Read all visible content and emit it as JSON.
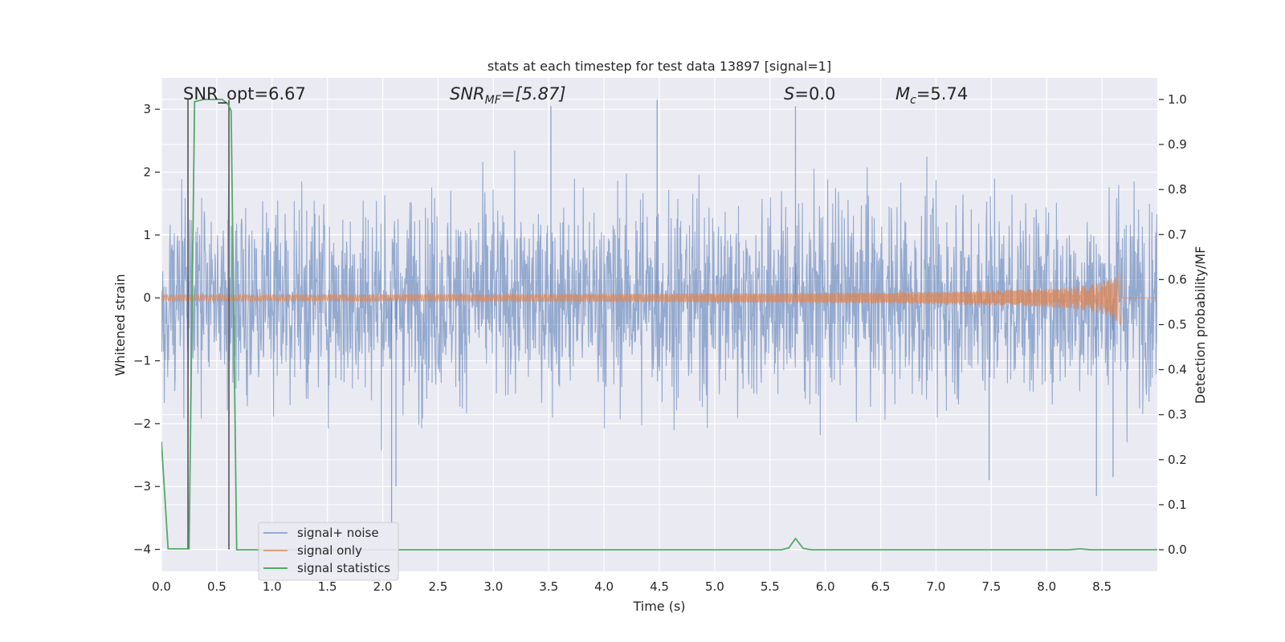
{
  "chart_data": {
    "type": "line",
    "title": "stats at each timestep for test data 13897 [signal=1]",
    "xlabel": "Time (s)",
    "ylabel": "Whitened strain",
    "y2label": "Detection probability/MF",
    "xlim": [
      0.0,
      9.0
    ],
    "ylim": [
      -4.35,
      3.5
    ],
    "y2lim": [
      -0.048,
      1.048
    ],
    "xticks": [
      "0.0",
      "0.5",
      "1.0",
      "1.5",
      "2.0",
      "2.5",
      "3.0",
      "3.5",
      "4.0",
      "4.5",
      "5.0",
      "5.5",
      "6.0",
      "6.5",
      "7.0",
      "7.5",
      "8.0",
      "8.5"
    ],
    "yticks": [
      "−4",
      "−3",
      "−2",
      "−1",
      "0",
      "1",
      "2",
      "3"
    ],
    "y2ticks": [
      "0.0",
      "0.1",
      "0.2",
      "0.3",
      "0.4",
      "0.5",
      "0.6",
      "0.7",
      "0.8",
      "0.9",
      "1.0"
    ],
    "annotations": {
      "snr_opt": "SNR_opt=6.67",
      "snr_mf_base": "SNR",
      "snr_mf_sub": "MF",
      "snr_mf_rest": "=[5.87]",
      "s_italic": "S",
      "s_rest": "=0.0",
      "mc_base": "M",
      "mc_sub": "c",
      "mc_rest": "=5.74"
    },
    "series": [
      {
        "name": "signal+ noise",
        "axis": "left",
        "color": "#4c72b0",
        "description": "whitened noisy strain, roughly within ±2.5 with peaks to ±3.2",
        "noise_amplitude": 1.0,
        "peaks": [
          {
            "x": 2.08,
            "y": -3.6
          },
          {
            "x": 4.48,
            "y": 3.15
          },
          {
            "x": 5.73,
            "y": 3.05
          },
          {
            "x": 8.45,
            "y": -3.15
          },
          {
            "x": 3.52,
            "y": 3.05
          },
          {
            "x": 2.12,
            "y": -3.0
          },
          {
            "x": 7.48,
            "y": -2.9
          },
          {
            "x": 8.6,
            "y": -2.85
          }
        ]
      },
      {
        "name": "signal only",
        "axis": "left",
        "color": "#dd8452",
        "description": "chirp signal growing in amplitude toward merger",
        "start": 0.0,
        "end": 8.68,
        "amplitude_at_end": 0.55
      },
      {
        "name": "signal statistics",
        "axis": "right",
        "color": "#55a868",
        "x": [
          0.0,
          0.06,
          0.24,
          0.25,
          0.3,
          0.38,
          0.55,
          0.6,
          0.63,
          0.68,
          5.6,
          5.67,
          5.73,
          5.8,
          5.88,
          8.2,
          8.3,
          8.4,
          8.5,
          9.0
        ],
        "y": [
          0.24,
          0.002,
          0.002,
          0.002,
          0.995,
          1.0,
          1.0,
          0.99,
          0.975,
          0.0,
          0.0,
          0.004,
          0.025,
          0.003,
          0.0,
          0.0,
          0.002,
          0.0,
          0.0,
          0.0
        ]
      }
    ],
    "vlines": [
      {
        "x": 0.24,
        "y_from": -4.0,
        "y_to": 3.15,
        "color": "#555555"
      },
      {
        "x": 0.61,
        "y_from": -4.0,
        "y_to": 3.15,
        "color": "#555555"
      }
    ],
    "legend": {
      "placement": "lower-left",
      "entries": [
        "signal+ noise",
        "signal only",
        "signal statistics"
      ]
    }
  }
}
